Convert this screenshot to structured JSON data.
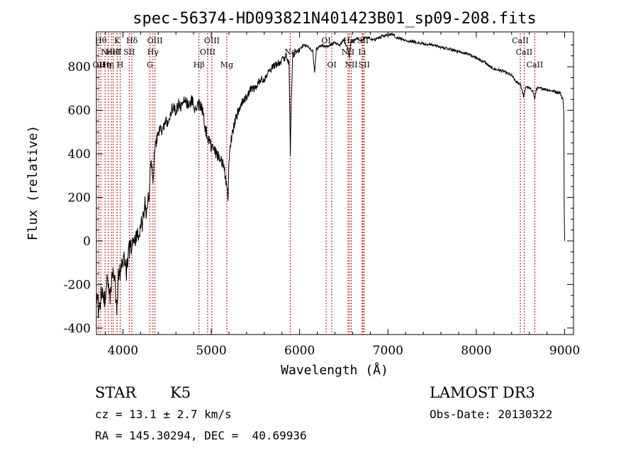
{
  "chart_data": {
    "type": "line",
    "title": "spec-56374-HD093821N401423B01_sp09-208.fits",
    "xlabel": "Wavelength (Å)",
    "ylabel": "Flux (relative)",
    "xlim": [
      3700,
      9100
    ],
    "ylim": [
      -430,
      960
    ],
    "x_ticks": [
      4000,
      5000,
      6000,
      7000,
      8000,
      9000
    ],
    "x_tick_labels": [
      "4000",
      "5000",
      "6000",
      "7000",
      "8000",
      "9000"
    ],
    "y_ticks": [
      -400,
      -200,
      0,
      200,
      400,
      600,
      800
    ],
    "y_tick_labels": [
      "-400",
      "-200",
      "0",
      "200",
      "400",
      "600",
      "800"
    ],
    "series": [
      {
        "name": "spectrum",
        "points": [
          [
            3700,
            -250
          ],
          [
            3730,
            -330
          ],
          [
            3760,
            -220
          ],
          [
            3790,
            -280
          ],
          [
            3820,
            -180
          ],
          [
            3850,
            -260
          ],
          [
            3880,
            -150
          ],
          [
            3910,
            -200
          ],
          [
            3930,
            -330
          ],
          [
            3950,
            -170
          ],
          [
            3980,
            -120
          ],
          [
            4010,
            -80
          ],
          [
            4040,
            -140
          ],
          [
            4070,
            -40
          ],
          [
            4100,
            -10
          ],
          [
            4130,
            20
          ],
          [
            4160,
            10
          ],
          [
            4190,
            60
          ],
          [
            4220,
            80
          ],
          [
            4250,
            160
          ],
          [
            4270,
            120
          ],
          [
            4290,
            200
          ],
          [
            4320,
            380
          ],
          [
            4340,
            260
          ],
          [
            4360,
            420
          ],
          [
            4390,
            480
          ],
          [
            4420,
            520
          ],
          [
            4450,
            500
          ],
          [
            4480,
            560
          ],
          [
            4510,
            540
          ],
          [
            4540,
            590
          ],
          [
            4570,
            620
          ],
          [
            4600,
            600
          ],
          [
            4630,
            630
          ],
          [
            4660,
            610
          ],
          [
            4700,
            660
          ],
          [
            4740,
            620
          ],
          [
            4780,
            650
          ],
          [
            4820,
            600
          ],
          [
            4860,
            630
          ],
          [
            4900,
            600
          ],
          [
            4930,
            520
          ],
          [
            4960,
            480
          ],
          [
            4990,
            440
          ],
          [
            5020,
            420
          ],
          [
            5060,
            400
          ],
          [
            5100,
            380
          ],
          [
            5140,
            350
          ],
          [
            5170,
            270
          ],
          [
            5190,
            190
          ],
          [
            5200,
            380
          ],
          [
            5230,
            470
          ],
          [
            5270,
            560
          ],
          [
            5310,
            600
          ],
          [
            5350,
            640
          ],
          [
            5400,
            660
          ],
          [
            5450,
            700
          ],
          [
            5500,
            700
          ],
          [
            5550,
            740
          ],
          [
            5600,
            740
          ],
          [
            5650,
            780
          ],
          [
            5700,
            800
          ],
          [
            5750,
            810
          ],
          [
            5800,
            830
          ],
          [
            5850,
            850
          ],
          [
            5880,
            820
          ],
          [
            5890,
            560
          ],
          [
            5895,
            400
          ],
          [
            5905,
            620
          ],
          [
            5920,
            850
          ],
          [
            5960,
            870
          ],
          [
            6000,
            880
          ],
          [
            6050,
            900
          ],
          [
            6100,
            890
          ],
          [
            6150,
            870
          ],
          [
            6170,
            770
          ],
          [
            6190,
            880
          ],
          [
            6250,
            900
          ],
          [
            6300,
            890
          ],
          [
            6350,
            900
          ],
          [
            6400,
            910
          ],
          [
            6450,
            900
          ],
          [
            6500,
            920
          ],
          [
            6550,
            880
          ],
          [
            6563,
            840
          ],
          [
            6580,
            910
          ],
          [
            6650,
            930
          ],
          [
            6700,
            920
          ],
          [
            6750,
            935
          ],
          [
            6800,
            930
          ],
          [
            6850,
            925
          ],
          [
            6900,
            935
          ],
          [
            6950,
            940
          ],
          [
            7000,
            945
          ],
          [
            7050,
            950
          ],
          [
            7100,
            935
          ],
          [
            7200,
            920
          ],
          [
            7300,
            915
          ],
          [
            7400,
            905
          ],
          [
            7500,
            900
          ],
          [
            7600,
            890
          ],
          [
            7700,
            880
          ],
          [
            7800,
            870
          ],
          [
            7900,
            860
          ],
          [
            8000,
            840
          ],
          [
            8100,
            820
          ],
          [
            8150,
            800
          ],
          [
            8200,
            790
          ],
          [
            8300,
            780
          ],
          [
            8400,
            760
          ],
          [
            8450,
            730
          ],
          [
            8500,
            720
          ],
          [
            8540,
            660
          ],
          [
            8560,
            710
          ],
          [
            8600,
            700
          ],
          [
            8640,
            690
          ],
          [
            8662,
            650
          ],
          [
            8680,
            700
          ],
          [
            8750,
            700
          ],
          [
            8800,
            695
          ],
          [
            8850,
            690
          ],
          [
            8900,
            685
          ],
          [
            8950,
            680
          ],
          [
            8980,
            650
          ],
          [
            8990,
            600
          ],
          [
            8995,
            150
          ],
          [
            9000,
            0
          ]
        ]
      }
    ],
    "line_markers": [
      {
        "wavelength": 3727,
        "label": "OII",
        "tier": 3
      },
      {
        "wavelength": 3750,
        "label": "Hθ",
        "tier": 1
      },
      {
        "wavelength": 3798,
        "label": "Hη",
        "tier": 3
      },
      {
        "wavelength": 3835,
        "label": "Hη",
        "tier": 3
      },
      {
        "wavelength": 3869,
        "label": "NeIII",
        "tier": 2
      },
      {
        "wavelength": 3889,
        "label": "HeI",
        "tier": 2
      },
      {
        "wavelength": 3934,
        "label": "K",
        "tier": 1
      },
      {
        "wavelength": 3969,
        "label": "H",
        "tier": 3
      },
      {
        "wavelength": 4072,
        "label": "SII",
        "tier": 2
      },
      {
        "wavelength": 4102,
        "label": "Hδ",
        "tier": 1
      },
      {
        "wavelength": 4305,
        "label": "G",
        "tier": 3
      },
      {
        "wavelength": 4340,
        "label": "Hγ",
        "tier": 2
      },
      {
        "wavelength": 4363,
        "label": "OIII",
        "tier": 1
      },
      {
        "wavelength": 4861,
        "label": "Hβ",
        "tier": 3
      },
      {
        "wavelength": 4959,
        "label": "OIII",
        "tier": 2
      },
      {
        "wavelength": 5007,
        "label": "OIII",
        "tier": 1
      },
      {
        "wavelength": 5176,
        "label": "Mg",
        "tier": 3
      },
      {
        "wavelength": 5893,
        "label": "Na",
        "tier": 2
      },
      {
        "wavelength": 6300,
        "label": "OI",
        "tier": 1
      },
      {
        "wavelength": 6364,
        "label": "OI",
        "tier": 3
      },
      {
        "wavelength": 6548,
        "label": "NII",
        "tier": 2
      },
      {
        "wavelength": 6563,
        "label": "Hα",
        "tier": 1
      },
      {
        "wavelength": 6584,
        "label": "NII",
        "tier": 3
      },
      {
        "wavelength": 6707,
        "label": "Li",
        "tier": 2
      },
      {
        "wavelength": 6717,
        "label": "SII",
        "tier": 1
      },
      {
        "wavelength": 6731,
        "label": "SII",
        "tier": 3
      },
      {
        "wavelength": 8498,
        "label": "CaII",
        "tier": 1
      },
      {
        "wavelength": 8542,
        "label": "CaII",
        "tier": 2
      },
      {
        "wavelength": 8662,
        "label": "CaII",
        "tier": 3
      }
    ]
  },
  "info": {
    "object_type": "STAR",
    "subclass": "K5",
    "survey": "LAMOST DR3",
    "cz": "cz = 13.1 ± 2.7 km/s",
    "obs_date": "Obs-Date: 20130322",
    "coords": "RA = 145.30294, DEC =  40.69936"
  },
  "colors": {
    "spectrum": "#000000",
    "marker": "#cc0000",
    "axis": "#000000"
  }
}
